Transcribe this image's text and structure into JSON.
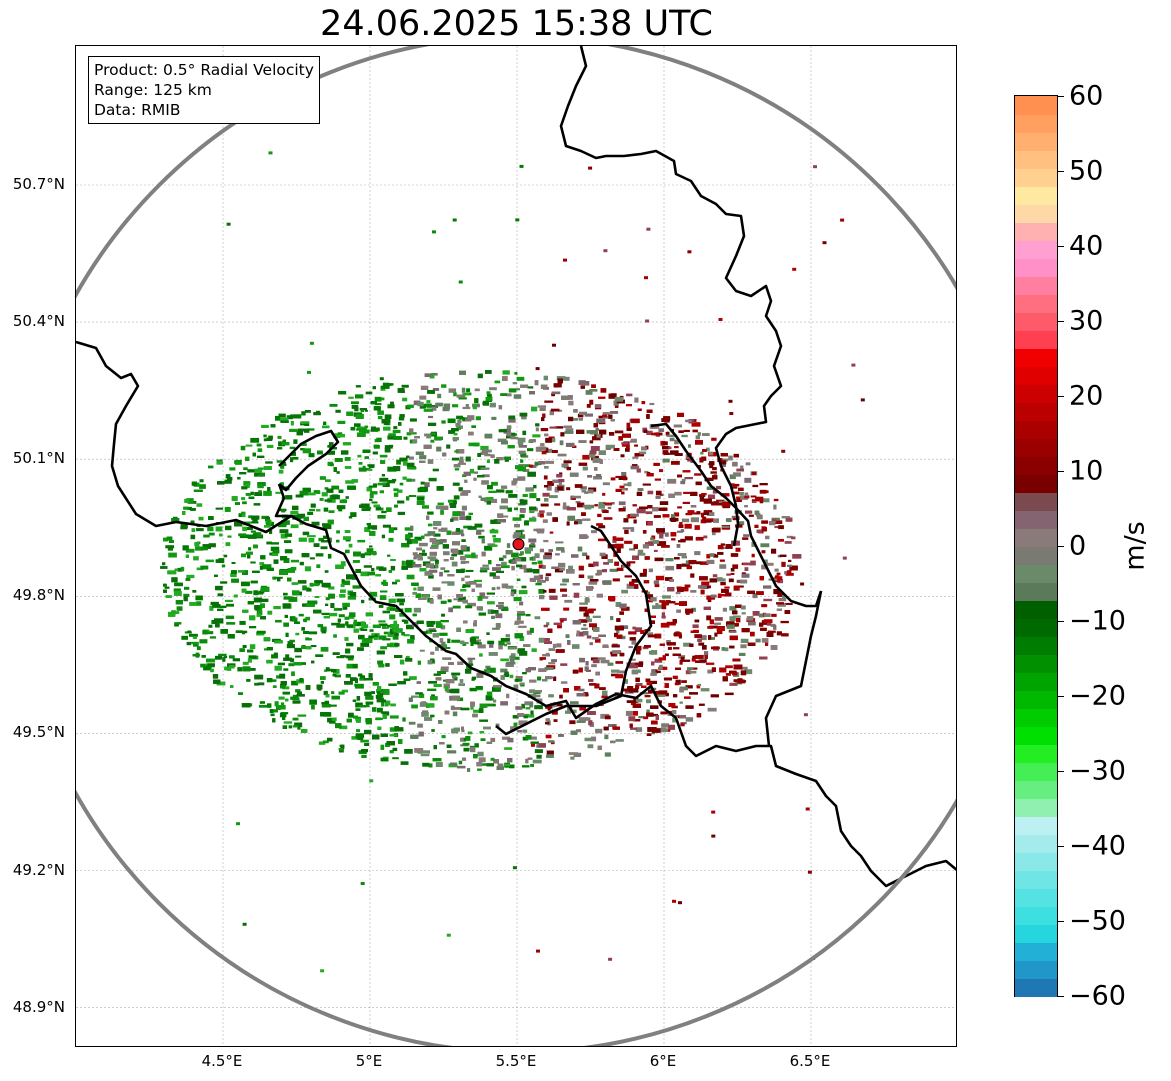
{
  "title": "24.06.2025 15:38 UTC",
  "info_box": {
    "product": "Product: 0.5° Radial Velocity",
    "range": "Range: 125 km",
    "source": "Data: RMIB"
  },
  "map": {
    "lon_range": [
      4.0,
      7.0
    ],
    "lat_range": [
      48.8,
      51.0
    ],
    "lat_ticks": [
      "50.7°N",
      "50.4°N",
      "50.1°N",
      "49.8°N",
      "49.5°N",
      "49.2°N",
      "48.9°N"
    ],
    "lon_ticks": [
      "4.5°E",
      "5°E",
      "5.5°E",
      "6°E",
      "6.5°E"
    ],
    "lat_values": [
      50.7,
      50.4,
      50.1,
      49.8,
      49.5,
      49.2,
      48.9
    ],
    "lon_values": [
      4.5,
      5.0,
      5.5,
      6.0,
      6.5
    ],
    "radar_site": {
      "lon": 5.505,
      "lat": 49.914
    },
    "range_ring_km": 125,
    "colors": {
      "ring": "#808080",
      "border": "#000000",
      "gridline": "#b0b0b0",
      "site_marker": "#e8141c",
      "inbound_green": "#0b8a0b",
      "near_zero_gray": "#7d7d74",
      "outbound_red": "#7a0000"
    }
  },
  "colorbar": {
    "unit": "m/s",
    "vmin": -60,
    "vmax": 60,
    "ticks": [
      "60",
      "50",
      "40",
      "30",
      "20",
      "10",
      "0",
      "−10",
      "−20",
      "−30",
      "−40",
      "−50",
      "−60"
    ],
    "tick_values": [
      60,
      50,
      40,
      30,
      20,
      10,
      0,
      -10,
      -20,
      -30,
      -40,
      -50,
      -60
    ],
    "colors_bottom_to_top": [
      "#1f77b4",
      "#2196c8",
      "#22b0d6",
      "#26d6df",
      "#3ddfe0",
      "#55e2e2",
      "#6fe5e5",
      "#8ae8e9",
      "#a4ebec",
      "#bcf0f2",
      "#90f0b0",
      "#66ee80",
      "#44ee55",
      "#22ee22",
      "#00e000",
      "#00cc00",
      "#00b800",
      "#00a400",
      "#009000",
      "#007c00",
      "#006a00",
      "#006000",
      "#5a7a5a",
      "#6a8a6a",
      "#7a7a72",
      "#8a7a7a",
      "#836470",
      "#7a4a50",
      "#7a0000",
      "#8a0000",
      "#9a0000",
      "#aa0000",
      "#ba0000",
      "#cc0000",
      "#e00000",
      "#f00000",
      "#ff4050",
      "#ff5a6a",
      "#ff6f80",
      "#ff7fa0",
      "#ff90c8",
      "#ffa0d0",
      "#ffb0b0",
      "#ffd8a8",
      "#ffe8a0",
      "#ffd090",
      "#ffc080",
      "#ffb070",
      "#ffa060",
      "#ff9050"
    ]
  }
}
